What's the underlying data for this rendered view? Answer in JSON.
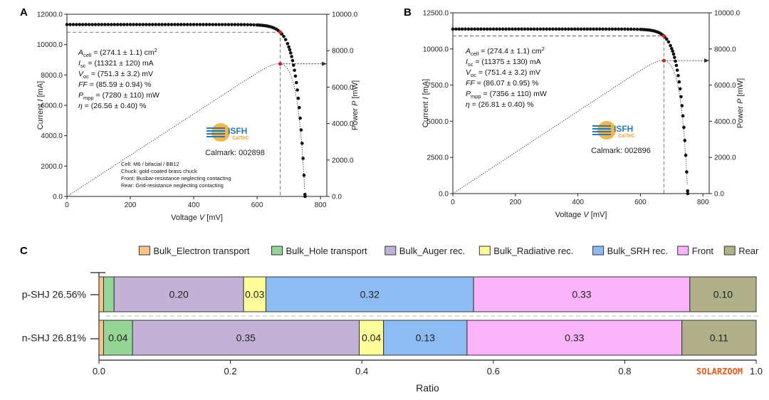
{
  "panels": {
    "a": "A",
    "b": "B",
    "c": "C"
  },
  "chart_data": [
    {
      "id": "A",
      "type": "line",
      "xlabel_main": "Voltage ",
      "xlabel_var": "V",
      "xlabel_unit": " [mV]",
      "ylabel_main": "Current ",
      "ylabel_var": "I",
      "ylabel_unit": " [mA]",
      "y2label_main": "Power ",
      "y2label_var": "P",
      "y2label_unit": " [mW]",
      "xlim": [
        0,
        820
      ],
      "ylim": [
        0,
        12000
      ],
      "y2lim": [
        0,
        10000
      ],
      "xticks": [
        0,
        200,
        400,
        600,
        800
      ],
      "xtick_labels": [
        "0",
        "200",
        "400",
        "600",
        "800"
      ],
      "yticks": [
        0,
        2000,
        4000,
        6000,
        8000,
        10000,
        12000
      ],
      "ytick_labels": [
        "0.0",
        "2000.0",
        "4000.0",
        "6000.0",
        "8000.0",
        "10000.0",
        "12000.0"
      ],
      "y2ticks": [
        0,
        2000,
        4000,
        6000,
        8000,
        10000
      ],
      "y2tick_labels": [
        "0.0",
        "2000.0",
        "4000.0",
        "6000.0",
        "8000.0",
        "10000.0"
      ],
      "isc": 11321,
      "voc": 751.3,
      "vmpp": 673,
      "impp": 10817,
      "pmpp": 7280,
      "info": [
        {
          "main": "A",
          "sub": "cell",
          "rest": " = (274.1 ± 1.1) cm",
          "sup": "2"
        },
        {
          "main": "I",
          "sub": "sc",
          "rest": " = (11321 ± 120) mA",
          "sup": ""
        },
        {
          "main": "V",
          "sub": "oc",
          "rest": " = (751.3 ± 3.2) mV",
          "sup": ""
        },
        {
          "main": "FF",
          "sub": "",
          "rest": " = (85.59 ± 0.94) %",
          "sup": ""
        },
        {
          "main": "P",
          "sub": "mpp",
          "rest": " = (7280 ± 110) mW",
          "sup": ""
        },
        {
          "main": "η",
          "sub": "",
          "rest": " = (26.56 ± 0.40) %",
          "sup": ""
        }
      ],
      "notes": [
        "Cell: M6 / bifacial / BB12",
        "Chuck: gold-coated brass chuck",
        "Front: Busbar-resistance neglecting contacting",
        "Rear: Grid-resistance neglecting contacting"
      ],
      "logo": {
        "name": "ISFH",
        "sub": "CalTeC"
      },
      "calmark": "Calmark: 002898"
    },
    {
      "id": "B",
      "type": "line",
      "xlabel_main": "Voltage ",
      "xlabel_var": "V",
      "xlabel_unit": " [mV]",
      "ylabel_main": "Current ",
      "ylabel_var": "I",
      "ylabel_unit": " [mA]",
      "y2label_main": "Power ",
      "y2label_var": "P",
      "y2label_unit": " [mW]",
      "xlim": [
        0,
        820
      ],
      "ylim": [
        0,
        12500
      ],
      "y2lim": [
        0,
        10000
      ],
      "xticks": [
        0,
        200,
        400,
        600,
        800
      ],
      "xtick_labels": [
        "0",
        "200",
        "400",
        "600",
        "800"
      ],
      "yticks": [
        0,
        2500,
        5000,
        7500,
        10000,
        12500
      ],
      "ytick_labels": [
        "0.0",
        "2500.0",
        "5000.0",
        "7500.0",
        "10000.0",
        "12500.0"
      ],
      "y2ticks": [
        0,
        2000,
        4000,
        6000,
        8000,
        10000
      ],
      "y2tick_labels": [
        "0.0",
        "2000.0",
        "4000.0",
        "6000.0",
        "8000.0",
        "10000.0"
      ],
      "isc": 11375,
      "voc": 751.4,
      "vmpp": 675,
      "impp": 10898,
      "pmpp": 7356,
      "info": [
        {
          "main": "A",
          "sub": "cell",
          "rest": " = (274.4 ± 1.1) cm",
          "sup": "2"
        },
        {
          "main": "I",
          "sub": "sc",
          "rest": " = (11375 ± 130) mA",
          "sup": ""
        },
        {
          "main": "V",
          "sub": "oc",
          "rest": " = (751.4 ± 3.2) mV",
          "sup": ""
        },
        {
          "main": "FF",
          "sub": "",
          "rest": " = (86.07 ± 0.95) %",
          "sup": ""
        },
        {
          "main": "P",
          "sub": "mpp",
          "rest": " = (7356 ± 110) mW",
          "sup": ""
        },
        {
          "main": "η",
          "sub": "",
          "rest": " = (26.81 ± 0.40) %",
          "sup": ""
        }
      ],
      "notes": [],
      "logo": {
        "name": "ISFH",
        "sub": "CalTeC"
      },
      "calmark": "Calmark: 002896"
    },
    {
      "id": "C",
      "type": "bar",
      "orientation": "horizontal-stacked",
      "xlabel": "Ratio",
      "xlim": [
        0,
        1.0
      ],
      "xticks": [
        0,
        0.2,
        0.4,
        0.6,
        0.8,
        1.0
      ],
      "xtick_labels": [
        "0.0",
        "0.2",
        "0.4",
        "0.6",
        "0.8",
        "1.0"
      ],
      "categories": [
        "p-SHJ 26.56%",
        "n-SHJ 26.81%"
      ],
      "legend_position": "top-right",
      "series": [
        {
          "name": "Bulk_Electron transport",
          "color": "#f7c48c",
          "values": [
            0.007,
            0.007
          ],
          "labels": [
            "",
            ""
          ]
        },
        {
          "name": "Bulk_Hole transport",
          "color": "#95d595",
          "values": [
            0.016,
            0.044
          ],
          "labels": [
            "",
            "0.04"
          ]
        },
        {
          "name": "Bulk_Auger rec.",
          "color": "#c3b1d6",
          "values": [
            0.197,
            0.345
          ],
          "labels": [
            "0.20",
            "0.35"
          ]
        },
        {
          "name": "Bulk_Radiative rec.",
          "color": "#fffd9a",
          "values": [
            0.034,
            0.037
          ],
          "labels": [
            "0.03",
            "0.04"
          ]
        },
        {
          "name": "Bulk_SRH rec.",
          "color": "#8dbcf3",
          "values": [
            0.316,
            0.127
          ],
          "labels": [
            "0.32",
            "0.13"
          ]
        },
        {
          "name": "Front",
          "color": "#fbb4fa",
          "values": [
            0.329,
            0.327
          ],
          "labels": [
            "0.33",
            "0.33"
          ]
        },
        {
          "name": "Rear",
          "color": "#b0b08b",
          "values": [
            0.101,
            0.113
          ],
          "labels": [
            "0.10",
            "0.11"
          ]
        }
      ]
    }
  ],
  "watermark": "SOLARZOOM"
}
